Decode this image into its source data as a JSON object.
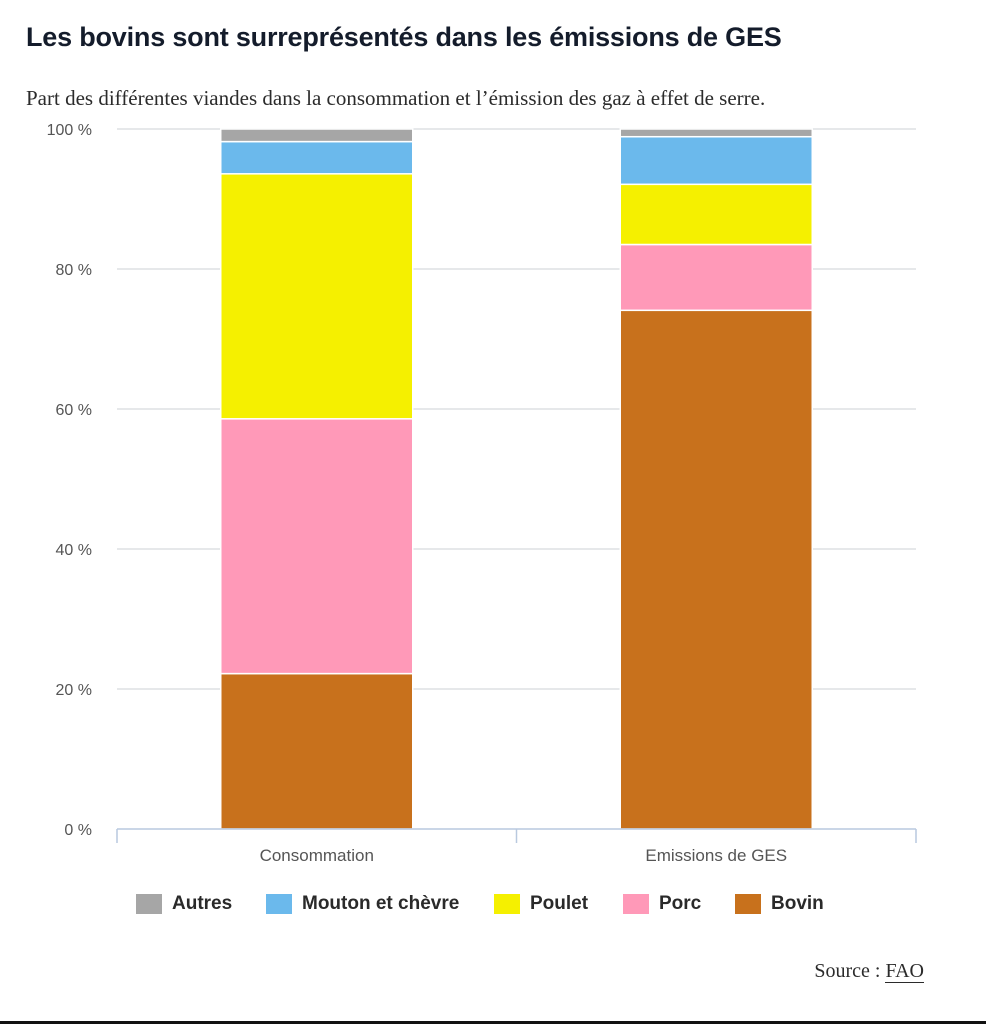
{
  "title": "Les bovins sont surreprésentés dans les émissions de GES",
  "subtitle": "Part des différentes viandes dans la consommation et l’émission des gaz à effet de serre.",
  "source": {
    "label": "Source :",
    "link_text": "FAO"
  },
  "chart_data": {
    "type": "bar",
    "stacked": true,
    "categories": [
      "Consommation",
      "Emissions de GES"
    ],
    "series": [
      {
        "name": "Bovin",
        "color": "#c8711c",
        "values": [
          22.2,
          74.1
        ]
      },
      {
        "name": "Porc",
        "color": "#ff99b8",
        "values": [
          36.4,
          9.4
        ]
      },
      {
        "name": "Poulet",
        "color": "#f5f000",
        "values": [
          35.0,
          8.6
        ]
      },
      {
        "name": "Mouton et chèvre",
        "color": "#6bb9ec",
        "values": [
          4.6,
          6.8
        ]
      },
      {
        "name": "Autres",
        "color": "#a6a6a6",
        "values": [
          1.8,
          1.1
        ]
      }
    ],
    "legend_order": [
      "Autres",
      "Mouton et chèvre",
      "Poulet",
      "Porc",
      "Bovin"
    ],
    "yticks": [
      "0 %",
      "20 %",
      "40 %",
      "60 %",
      "80 %",
      "100 %"
    ],
    "ylim": [
      0,
      100
    ],
    "grid": true,
    "legend_position": "bottom"
  }
}
